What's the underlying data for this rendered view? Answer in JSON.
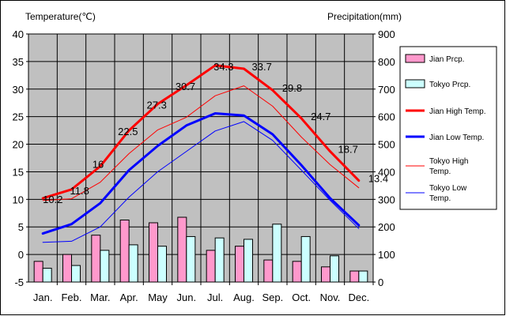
{
  "chart_data": {
    "type": "bar+line",
    "left_axis_title": "Temperature(℃)",
    "right_axis_title": "Precipitation(mm)",
    "categories": [
      "Jan.",
      "Feb.",
      "Mar.",
      "Apr.",
      "May",
      "Jun.",
      "Jul.",
      "Aug.",
      "Sep.",
      "Oct.",
      "Nov.",
      "Dec."
    ],
    "ylim_left": [
      -5,
      40
    ],
    "yticks_left": [
      "40",
      "35",
      "30",
      "25",
      "20",
      "15",
      "10",
      "5",
      "0",
      "-5"
    ],
    "ylim_right": [
      0,
      900
    ],
    "yticks_right": [
      "900",
      "800",
      "700",
      "600",
      "500",
      "400",
      "300",
      "200",
      "100",
      "0"
    ],
    "grid": true,
    "legend_position": "right",
    "bar_series": [
      {
        "name": "Jian Prcp.",
        "color": "#ff99cc",
        "values": [
          75,
          100,
          170,
          225,
          215,
          235,
          115,
          130,
          80,
          75,
          55,
          40
        ]
      },
      {
        "name": "Tokyo Prcp.",
        "color": "#ccffff",
        "values": [
          50,
          60,
          115,
          135,
          130,
          165,
          160,
          155,
          210,
          165,
          95,
          40
        ]
      }
    ],
    "line_series": [
      {
        "name": "Jian High Temp.",
        "color": "#ff0000",
        "width": 3,
        "values": [
          10.2,
          11.8,
          16,
          22.5,
          27.3,
          30.7,
          34.3,
          33.7,
          29.8,
          24.7,
          18.7,
          13.4
        ]
      },
      {
        "name": "Jian Low Temp.",
        "color": "#0000ff",
        "width": 3,
        "values": [
          3.8,
          5.5,
          9.3,
          15.3,
          19.7,
          23.4,
          25.6,
          25.2,
          21.8,
          16.2,
          10.2,
          5.3
        ]
      },
      {
        "name": "Tokyo High Temp.",
        "color": "#ff0000",
        "width": 1,
        "values": [
          9.8,
          10.1,
          13.1,
          18.3,
          22.6,
          24.9,
          28.8,
          30.6,
          26.9,
          21.3,
          16.3,
          12.1
        ]
      },
      {
        "name": "Tokyo Low Temp.",
        "color": "#0000ff",
        "width": 1,
        "values": [
          2.2,
          2.4,
          5.0,
          10.4,
          15.0,
          18.7,
          22.4,
          24.1,
          20.7,
          15.3,
          9.8,
          4.7
        ]
      }
    ],
    "data_labels": [
      "10.2",
      "11.8",
      "16",
      "22.5",
      "27.3",
      "30.7",
      "34.3",
      "33.7",
      "29.8",
      "24.7",
      "18.7",
      "13.4"
    ]
  }
}
